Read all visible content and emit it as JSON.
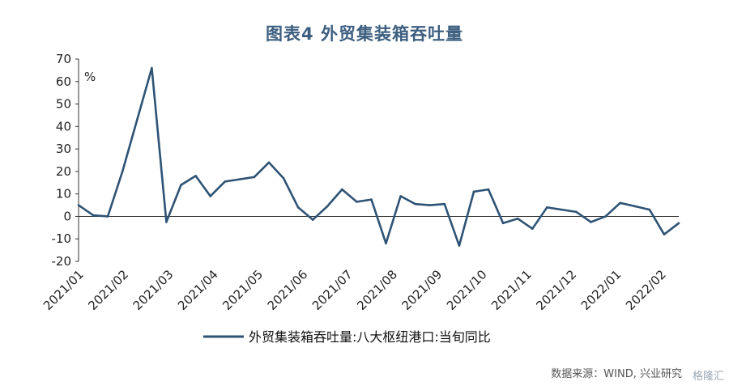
{
  "chart_data": {
    "type": "line",
    "title": "图表4  外贸集装箱吞吐量",
    "ylabel": "%",
    "ylim": [
      -20,
      70
    ],
    "yticks": [
      -20,
      -10,
      0,
      10,
      20,
      30,
      40,
      50,
      60,
      70
    ],
    "xtick_labels": [
      "2021/01",
      "2021/02",
      "2021/03",
      "2021/04",
      "2021/05",
      "2021/06",
      "2021/07",
      "2021/08",
      "2021/09",
      "2021/10",
      "2021/11",
      "2021/12",
      "2022/01",
      "2022/02"
    ],
    "legend": "top-bottom",
    "series": [
      {
        "name": "外贸集装箱吞吐量:八大枢纽港口:当旬同比",
        "color": "#2e5375",
        "values": [
          5,
          0.5,
          0,
          20,
          43,
          66,
          -2.5,
          14,
          18,
          9,
          15.5,
          16.5,
          17.5,
          24,
          17,
          4,
          -1.5,
          4.5,
          12,
          6.5,
          7.5,
          -12,
          9,
          5.5,
          5,
          5.5,
          -13,
          11,
          12,
          -3,
          -1,
          -5.5,
          4,
          3,
          2,
          -2.5,
          0,
          6,
          4.5,
          3,
          -8,
          -3
        ]
      }
    ]
  },
  "source": "数据来源：WIND, 兴业研究",
  "watermark": "格隆汇"
}
